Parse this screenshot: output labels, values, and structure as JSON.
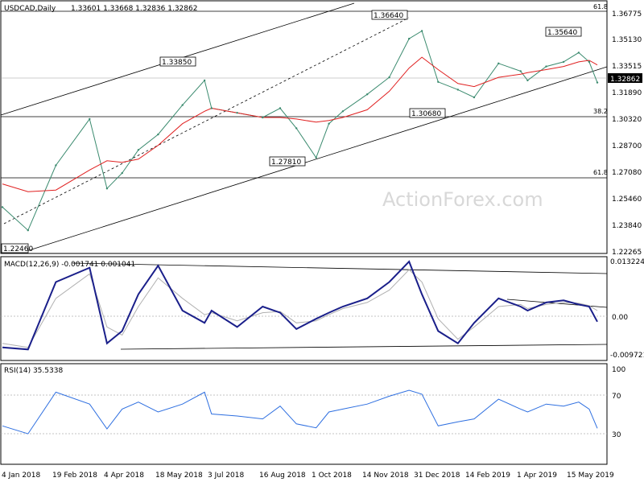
{
  "header": {
    "symbol": "USDCAD,Daily",
    "ohlc": "1.33601 1.33668 1.32836 1.32862"
  },
  "watermark": "ActionForex.com",
  "last_price_label": "1.32862",
  "colors": {
    "price_line": "#3a8a6e",
    "ma_line": "#e02020",
    "macd_line": "#1a1f8a",
    "macd_signal": "#b0b0b0",
    "rsi_line": "#2e6fe0",
    "trend_lines": "#000000",
    "grid_dash": "#b0b0b0",
    "background": "#ffffff"
  },
  "chart_data": [
    {
      "type": "line",
      "panel": "price",
      "title": "USDCAD,Daily",
      "ylim": [
        1.2185,
        1.381
      ],
      "y_ticks": [
        "1.36775",
        "1.35130",
        "1.33515",
        "1.31890",
        "1.30320",
        "1.28700",
        "1.27080",
        "1.25460",
        "1.23840",
        "1.22265"
      ],
      "x_ticks": [
        "4 Jan 2018",
        "19 Feb 2018",
        "4 Apr 2018",
        "18 May 2018",
        "3 Jul 2018",
        "16 Aug 2018",
        "1 Oct 2018",
        "14 Nov 2018",
        "31 Dec 2018",
        "14 Feb 2019",
        "1 Apr 2019",
        "15 May 2019"
      ],
      "x": [
        "2018-01-04",
        "2018-01-26",
        "2018-02-19",
        "2018-03-20",
        "2018-04-04",
        "2018-04-17",
        "2018-05-01",
        "2018-05-18",
        "2018-06-08",
        "2018-06-27",
        "2018-07-03",
        "2018-07-25",
        "2018-08-16",
        "2018-08-31",
        "2018-09-14",
        "2018-10-01",
        "2018-10-12",
        "2018-10-24",
        "2018-11-14",
        "2018-12-03",
        "2018-12-20",
        "2018-12-31",
        "2019-01-14",
        "2019-01-31",
        "2019-02-14",
        "2019-03-07",
        "2019-03-26",
        "2019-04-01",
        "2019-04-17",
        "2019-05-02",
        "2019-05-15",
        "2019-05-24",
        "2019-05-31"
      ],
      "series": [
        {
          "name": "Close",
          "values": [
            1.248,
            1.233,
            1.275,
            1.305,
            1.26,
            1.27,
            1.285,
            1.295,
            1.314,
            1.33,
            1.312,
            1.309,
            1.306,
            1.312,
            1.299,
            1.28,
            1.302,
            1.31,
            1.321,
            1.332,
            1.357,
            1.362,
            1.329,
            1.324,
            1.319,
            1.341,
            1.336,
            1.33,
            1.339,
            1.342,
            1.348,
            1.342,
            1.3286
          ]
        },
        {
          "name": "MA",
          "values": [
            1.263,
            1.258,
            1.259,
            1.272,
            1.278,
            1.277,
            1.279,
            1.288,
            1.302,
            1.31,
            1.312,
            1.309,
            1.306,
            1.306,
            1.305,
            1.303,
            1.304,
            1.306,
            1.311,
            1.323,
            1.338,
            1.345,
            1.337,
            1.328,
            1.326,
            1.332,
            1.334,
            1.335,
            1.337,
            1.339,
            1.342,
            1.343,
            1.34
          ]
        }
      ],
      "annotations": [
        "1.22460",
        "1.33850",
        "1.36640",
        "1.27810",
        "1.30680",
        "1.35640"
      ],
      "fib_levels": [
        {
          "label": "61.8",
          "value": 1.3675
        },
        {
          "label": "38.2",
          "value": 1.3051
        },
        {
          "label": "61.8",
          "value": 1.2695
        }
      ]
    },
    {
      "type": "line",
      "panel": "macd",
      "title": "MACD(12,26,9) -0.001741 0.001041",
      "ylim": [
        -0.011,
        0.014
      ],
      "y_ticks": [
        "0.013224",
        "0.00",
        "-0.009721"
      ],
      "series": [
        {
          "name": "MACD",
          "values": [
            -0.008,
            -0.0085,
            0.008,
            0.0115,
            -0.007,
            -0.004,
            0.005,
            0.012,
            0.001,
            -0.002,
            0.001,
            -0.003,
            0.002,
            0.0005,
            -0.0035,
            -0.001,
            0.0005,
            0.002,
            0.004,
            0.008,
            0.013,
            0.005,
            -0.004,
            -0.007,
            -0.002,
            0.004,
            0.002,
            0.001,
            0.003,
            0.0035,
            0.0025,
            0.002,
            -0.0017
          ]
        },
        {
          "name": "Signal",
          "values": [
            -0.007,
            -0.008,
            0.004,
            0.01,
            -0.003,
            -0.005,
            0.002,
            0.009,
            0.004,
            0.0,
            0.0005,
            -0.0015,
            0.0005,
            0.0008,
            -0.002,
            -0.0015,
            0.0,
            0.0015,
            0.003,
            0.006,
            0.011,
            0.008,
            -0.001,
            -0.006,
            -0.003,
            0.002,
            0.0025,
            0.0015,
            0.0025,
            0.003,
            0.0028,
            0.0022,
            0.001
          ]
        }
      ]
    },
    {
      "type": "line",
      "panel": "rsi",
      "title": "RSI(14) 35.5338",
      "ylim": [
        0,
        100
      ],
      "y_ticks": [
        "100",
        "70",
        "30"
      ],
      "series": [
        {
          "name": "RSI",
          "values": [
            38,
            30,
            72,
            60,
            35,
            55,
            62,
            52,
            60,
            72,
            50,
            48,
            45,
            58,
            40,
            36,
            52,
            55,
            60,
            68,
            74,
            70,
            38,
            42,
            45,
            65,
            55,
            52,
            60,
            58,
            62,
            55,
            35.5
          ]
        }
      ]
    }
  ]
}
